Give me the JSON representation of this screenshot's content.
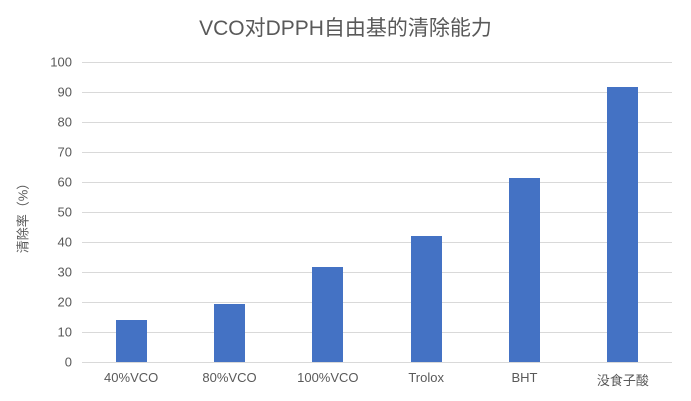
{
  "chart_data": {
    "type": "bar",
    "title": "VCO对DPPH自由基的清除能力",
    "xlabel": "",
    "ylabel": "清除率（%）",
    "categories": [
      "40%VCO",
      "80%VCO",
      "100%VCO",
      "Trolox",
      "BHT",
      "没食子酸"
    ],
    "values": [
      14,
      19.3,
      31.7,
      42,
      61.3,
      91.7
    ],
    "ylim": [
      0,
      100
    ],
    "yticks": [
      0,
      10,
      20,
      30,
      40,
      50,
      60,
      70,
      80,
      90,
      100
    ],
    "grid": true,
    "legend": null,
    "bar_color": "#4472c4"
  }
}
